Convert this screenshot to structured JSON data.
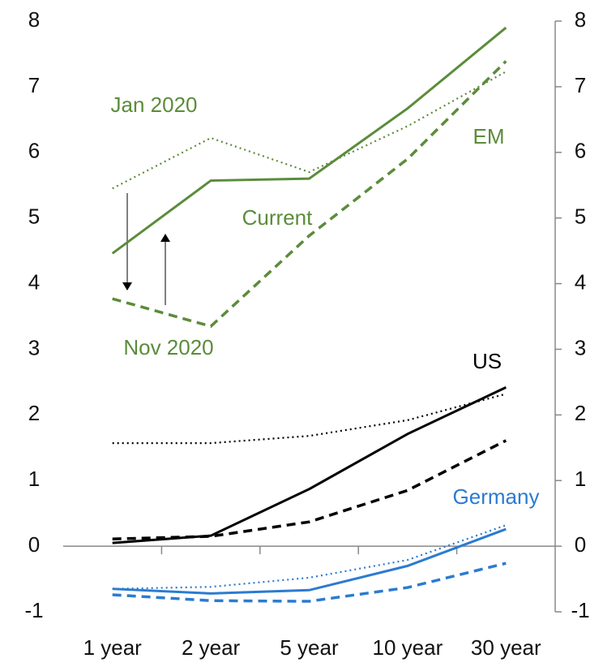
{
  "chart_data": {
    "type": "line",
    "categories": [
      "1 year",
      "2 year",
      "5 year",
      "10 year",
      "30 year"
    ],
    "ylim": [
      -1,
      8
    ],
    "yticks": [
      -1,
      0,
      1,
      2,
      3,
      4,
      5,
      6,
      7,
      8
    ],
    "y2lim": [
      -1,
      8
    ],
    "y2ticks": [
      -1,
      0,
      1,
      2,
      3,
      4,
      5,
      6,
      7,
      8
    ],
    "groups": [
      {
        "name": "EM",
        "color": "#5b8c3a",
        "series": [
          {
            "style": "solid",
            "values": [
              4.46,
              5.57,
              5.6,
              6.67,
              7.9
            ]
          },
          {
            "style": "dotted",
            "values": [
              5.45,
              6.22,
              5.7,
              6.4,
              7.23
            ]
          },
          {
            "style": "dashed",
            "values": [
              3.77,
              3.35,
              4.73,
              5.9,
              7.39
            ]
          }
        ]
      },
      {
        "name": "US",
        "color": "#000000",
        "series": [
          {
            "style": "solid",
            "values": [
              0.05,
              0.16,
              0.87,
              1.71,
              2.42
            ]
          },
          {
            "style": "dotted",
            "values": [
              1.57,
              1.57,
              1.68,
              1.92,
              2.32
            ]
          },
          {
            "style": "dashed",
            "values": [
              0.11,
              0.15,
              0.37,
              0.85,
              1.61
            ]
          }
        ]
      },
      {
        "name": "Germany",
        "color": "#2b7bd0",
        "series": [
          {
            "style": "solid",
            "values": [
              -0.65,
              -0.72,
              -0.67,
              -0.3,
              0.26
            ]
          },
          {
            "style": "dotted",
            "values": [
              -0.65,
              -0.62,
              -0.48,
              -0.21,
              0.32
            ]
          },
          {
            "style": "dashed",
            "values": [
              -0.74,
              -0.83,
              -0.84,
              -0.63,
              -0.26
            ]
          }
        ]
      }
    ],
    "annotations": [
      "Jan 2020",
      "Current",
      "Nov 2020"
    ]
  }
}
